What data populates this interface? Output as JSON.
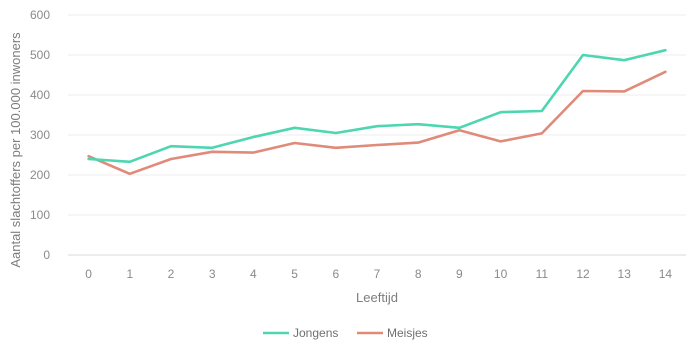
{
  "chart_data": {
    "type": "line",
    "title": "",
    "xlabel": "Leeftijd",
    "ylabel": "Aantal slachtoffers per 100.000 inwoners",
    "categories": [
      "0",
      "1",
      "2",
      "3",
      "4",
      "5",
      "6",
      "7",
      "8",
      "9",
      "10",
      "11",
      "12",
      "13",
      "14"
    ],
    "yticks": [
      "0",
      "100",
      "200",
      "300",
      "400",
      "500",
      "600"
    ],
    "ylim": [
      0,
      600
    ],
    "grid": true,
    "legend_position": "bottom",
    "series": [
      {
        "name": "Jongens",
        "color": "#4dd6b0",
        "values": [
          240,
          233,
          272,
          268,
          295,
          318,
          305,
          322,
          327,
          318,
          357,
          360,
          500,
          487,
          512
        ]
      },
      {
        "name": "Meisjes",
        "color": "#e08a7a",
        "values": [
          247,
          203,
          240,
          258,
          256,
          280,
          268,
          275,
          281,
          312,
          284,
          304,
          410,
          409,
          458
        ]
      }
    ]
  }
}
